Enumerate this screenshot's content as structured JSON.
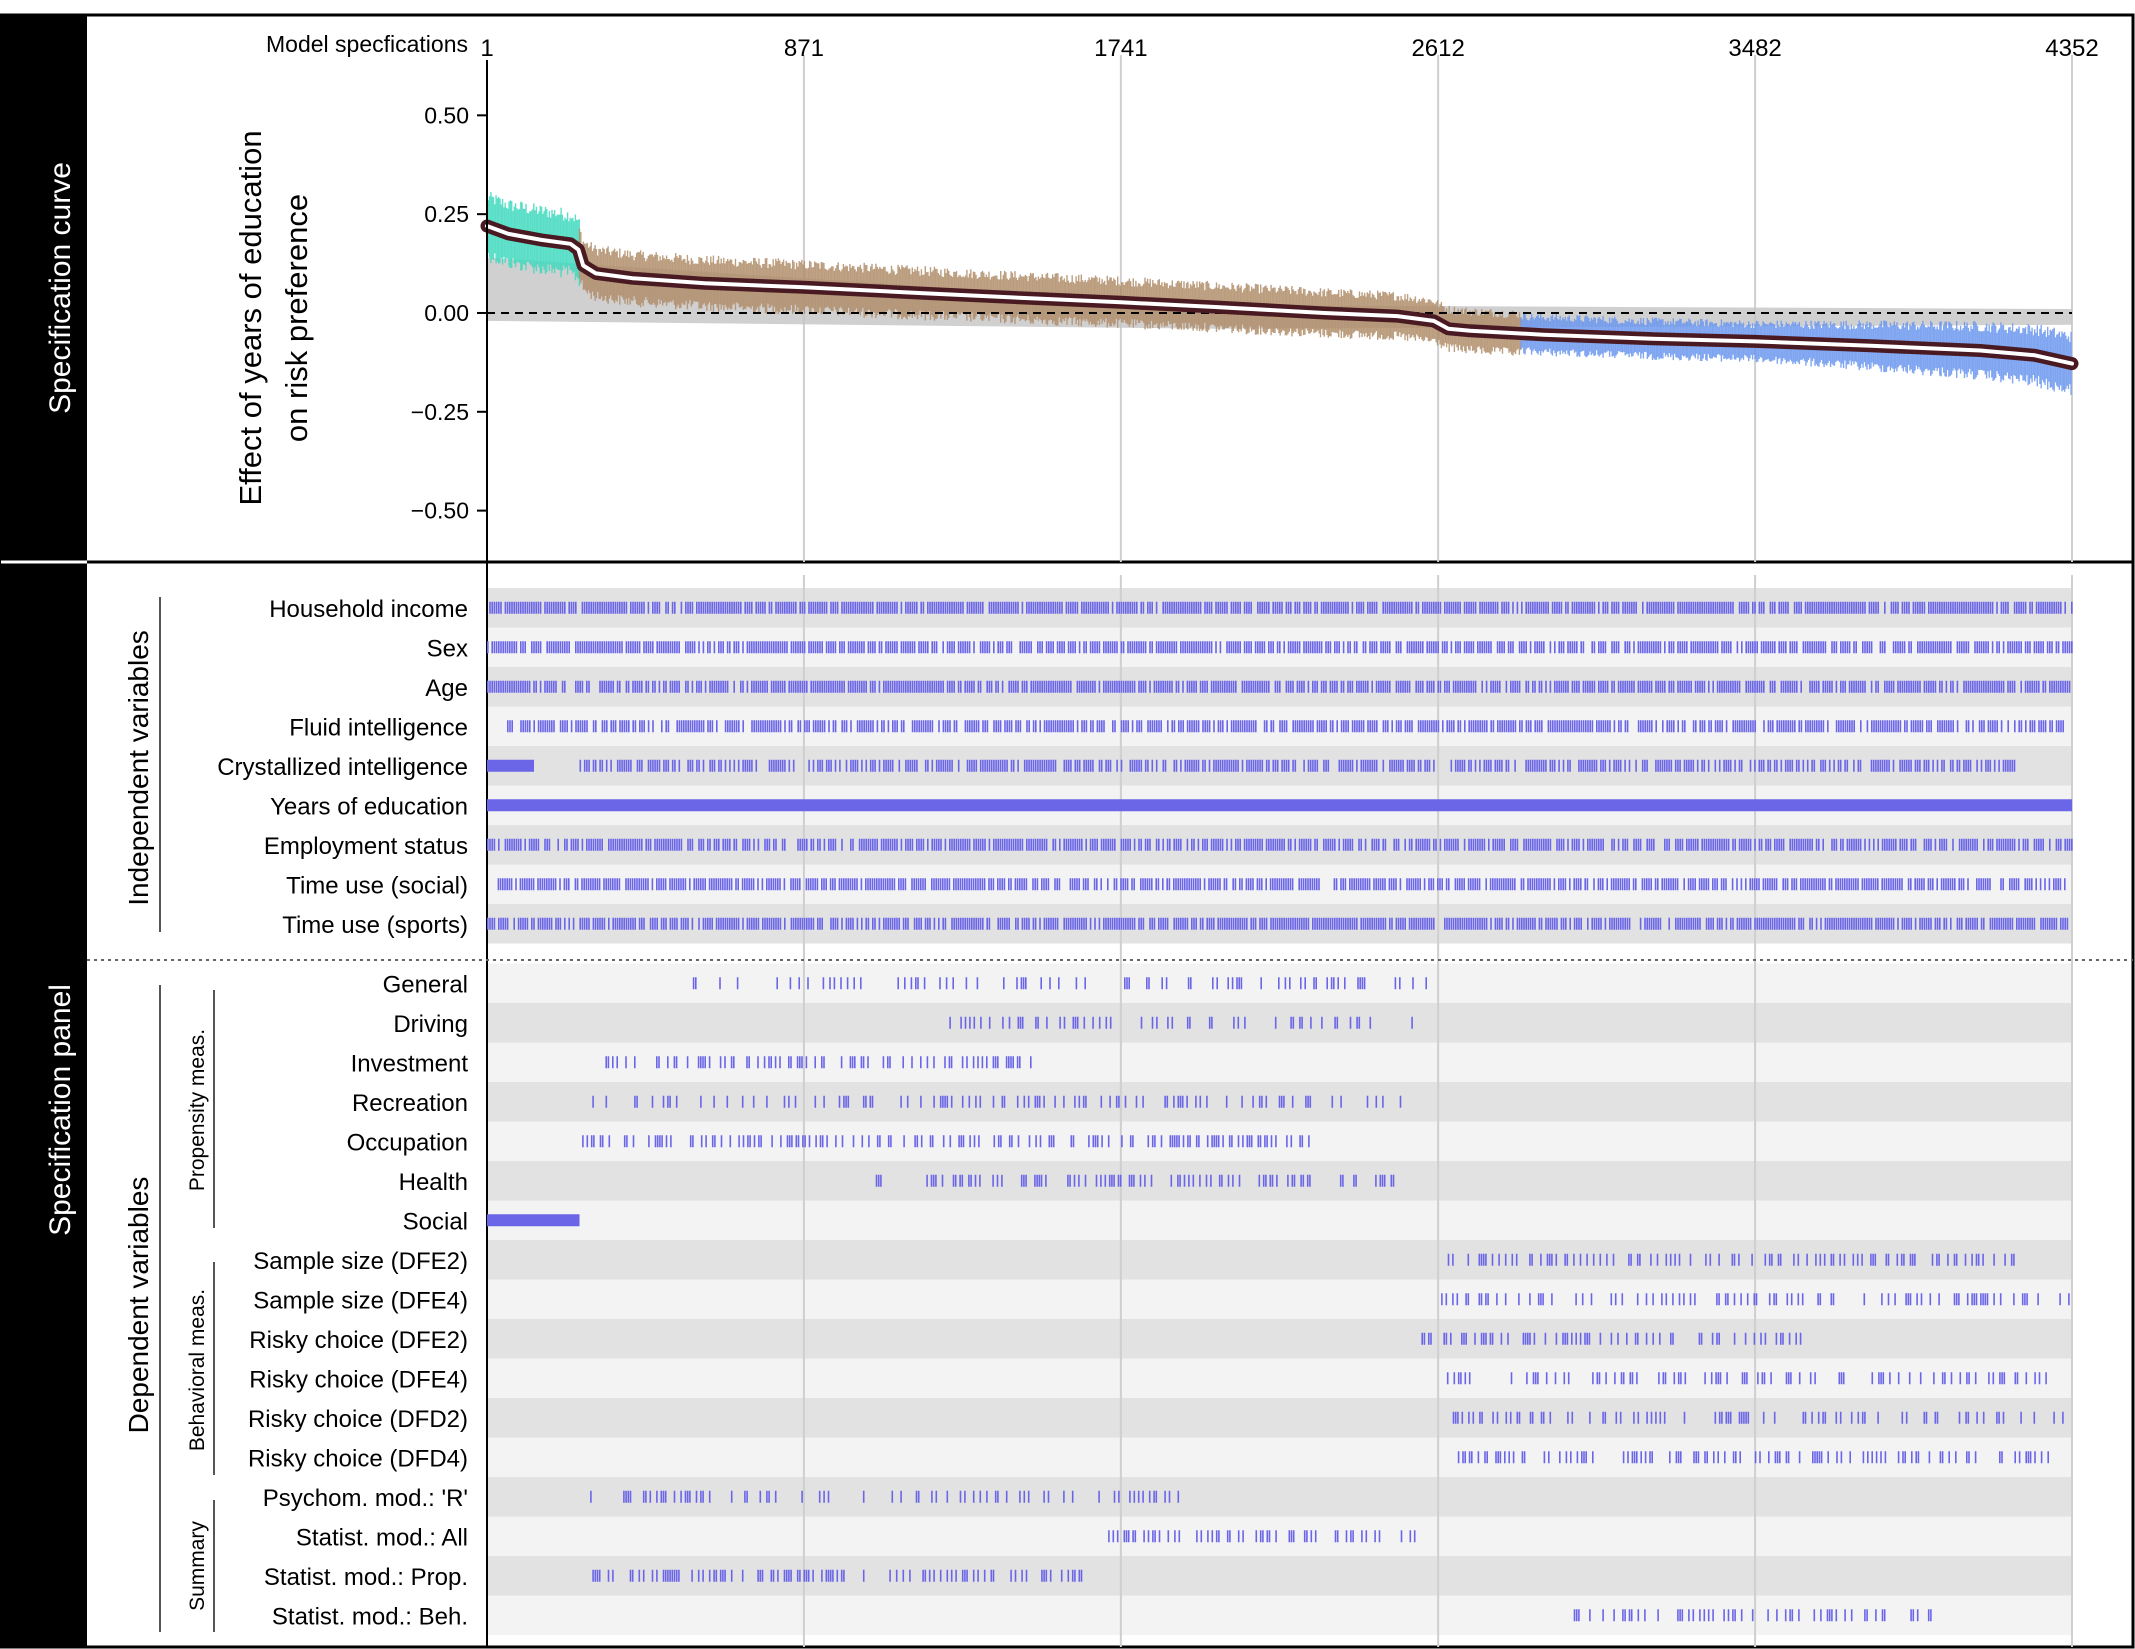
{
  "chart_data": {
    "type": "line",
    "x_header": "Model specfications",
    "x_ticks": [
      1,
      871,
      1741,
      2612,
      3482,
      4352
    ],
    "xlim": [
      1,
      4352
    ],
    "ylabel_line1": "Effect of  years of education",
    "ylabel_line2": "on risk preference",
    "y_ticks": [
      0.5,
      0.25,
      0.0,
      -0.25,
      -0.5
    ],
    "y_tick_labels": [
      "0.50",
      "0.25",
      "0.00",
      "−0.25",
      "−0.50"
    ],
    "ylim": [
      -0.63,
      0.64
    ],
    "zero_line": "dashed",
    "curve": {
      "x": [
        1,
        60,
        150,
        230,
        252,
        265,
        300,
        400,
        600,
        871,
        1200,
        1500,
        1741,
        2000,
        2300,
        2500,
        2600,
        2640,
        2700,
        2900,
        3200,
        3482,
        3800,
        4100,
        4250,
        4352
      ],
      "y": [
        0.22,
        0.2,
        0.185,
        0.175,
        0.16,
        0.12,
        0.1,
        0.088,
        0.075,
        0.065,
        0.05,
        0.037,
        0.027,
        0.015,
        0.0,
        -0.008,
        -0.02,
        -0.04,
        -0.045,
        -0.055,
        -0.065,
        -0.072,
        -0.083,
        -0.095,
        -0.107,
        -0.128
      ]
    },
    "ci_colors": {
      "propensity_social": "#3fd9be",
      "propensity": "#b08d6a",
      "behavioral": "#6b96ef"
    },
    "ci_segments": [
      {
        "group": "propensity_social",
        "from": 1,
        "to": 255
      },
      {
        "group": "propensity",
        "from": 255,
        "to": 2840
      },
      {
        "group": "behavioral",
        "from": 2840,
        "to": 4352
      }
    ],
    "null_band": {
      "x": [
        1,
        2000,
        4352
      ],
      "upper": [
        0.14,
        0.02,
        0.01
      ],
      "lower": [
        -0.02,
        -0.04,
        -0.03
      ]
    },
    "side_labels": {
      "top": "Specification curve",
      "bottom": "Specification panel"
    },
    "panel": {
      "mark_color": "#6b66e8",
      "groups": [
        {
          "name": "Independent variables",
          "rows": [
            "Household income",
            "Sex",
            "Age",
            "Fluid intelligence",
            "Crystallized intelligence",
            "Years of education",
            "Employment status",
            "Time use (social)",
            "Time use (sports)"
          ]
        },
        {
          "name": "Propensity meas.",
          "rows": [
            "General",
            "Driving",
            "Investment",
            "Recreation",
            "Occupation",
            "Health",
            "Social"
          ]
        },
        {
          "name": "Behavioral meas.",
          "rows": [
            "Sample size (DFE2)",
            "Sample size (DFE4)",
            "Risky choice (DFE2)",
            "Risky choice (DFE4)",
            "Risky choice (DFD2)",
            "Risky choice (DFD4)"
          ]
        },
        {
          "name": "Summary",
          "rows": [
            "Psychom. mod.: 'R'",
            "Statist. mod.: All",
            "Statist. mod.: Prop.",
            "Statist. mod.: Beh."
          ]
        }
      ],
      "dependent_label": "Dependent variables",
      "row_spans": [
        {
          "row": "Household income",
          "spans": [
            [
              1,
              4352,
              0.85
            ]
          ]
        },
        {
          "row": "Sex",
          "spans": [
            [
              1,
              4352,
              0.82
            ]
          ]
        },
        {
          "row": "Age",
          "spans": [
            [
              1,
              4352,
              0.8
            ]
          ]
        },
        {
          "row": "Fluid intelligence",
          "spans": [
            [
              50,
              4330,
              0.72
            ]
          ]
        },
        {
          "row": "Crystallized intelligence",
          "spans": [
            [
              1,
              130,
              1.0
            ],
            [
              255,
              2600,
              0.65
            ],
            [
              2640,
              4200,
              0.68
            ]
          ]
        },
        {
          "row": "Years of education",
          "spans": [
            [
              1,
              4352,
              1.0
            ]
          ]
        },
        {
          "row": "Employment status",
          "spans": [
            [
              1,
              4352,
              0.74
            ]
          ]
        },
        {
          "row": "Time use (social)",
          "spans": [
            [
              30,
              4330,
              0.78
            ]
          ]
        },
        {
          "row": "Time use (sports)",
          "spans": [
            [
              1,
              4352,
              0.76
            ]
          ]
        },
        {
          "row": "General",
          "spans": [
            [
              560,
              2600,
              0.22
            ]
          ]
        },
        {
          "row": "Driving",
          "spans": [
            [
              1270,
              2550,
              0.32
            ]
          ]
        },
        {
          "row": "Investment",
          "spans": [
            [
              320,
              1500,
              0.42
            ]
          ]
        },
        {
          "row": "Recreation",
          "spans": [
            [
              290,
              2560,
              0.26
            ]
          ]
        },
        {
          "row": "Occupation",
          "spans": [
            [
              250,
              2260,
              0.38
            ]
          ]
        },
        {
          "row": "Health",
          "spans": [
            [
              1050,
              2520,
              0.3
            ]
          ]
        },
        {
          "row": "Social",
          "spans": [
            [
              1,
              255,
              1.0
            ]
          ]
        },
        {
          "row": "Sample size (DFE2)",
          "spans": [
            [
              2620,
              4200,
              0.33
            ]
          ]
        },
        {
          "row": "Sample size (DFE4)",
          "spans": [
            [
              2620,
              4352,
              0.3
            ]
          ]
        },
        {
          "row": "Risky choice (DFE2)",
          "spans": [
            [
              2560,
              3640,
              0.35
            ]
          ]
        },
        {
          "row": "Risky choice (DFE4)",
          "spans": [
            [
              2630,
              4300,
              0.3
            ]
          ]
        },
        {
          "row": "Risky choice (DFD2)",
          "spans": [
            [
              2640,
              4330,
              0.3
            ]
          ]
        },
        {
          "row": "Risky choice (DFD4)",
          "spans": [
            [
              2660,
              4300,
              0.32
            ]
          ]
        },
        {
          "row": "Psychom. mod.: 'R'",
          "spans": [
            [
              260,
              1960,
              0.26
            ]
          ]
        },
        {
          "row": "Statist. mod.: All",
          "spans": [
            [
              1700,
              2550,
              0.4
            ]
          ]
        },
        {
          "row": "Statist. mod.: Prop.",
          "spans": [
            [
              290,
              1640,
              0.34
            ]
          ]
        },
        {
          "row": "Statist. mod.: Beh.",
          "spans": [
            [
              2960,
              3980,
              0.3
            ]
          ]
        }
      ]
    }
  }
}
